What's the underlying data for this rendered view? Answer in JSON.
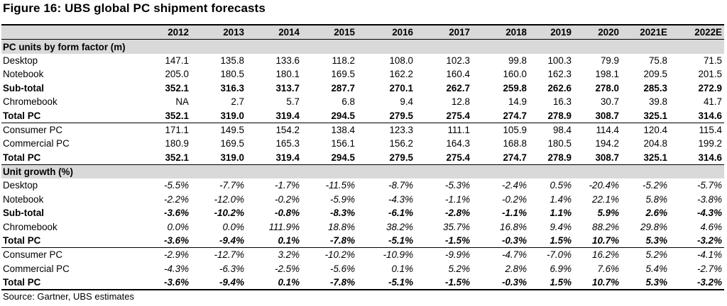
{
  "title": "Figure 16: UBS global PC shipment forecasts",
  "source": "Source:  Gartner, UBS estimates",
  "chart_data": {
    "type": "table",
    "columns": [
      "2012",
      "2013",
      "2014",
      "2015",
      "2016",
      "2017",
      "2018",
      "2019",
      "2020",
      "2021E",
      "2022E"
    ],
    "sections": [
      {
        "heading": "PC units by form factor (m)",
        "rows": [
          {
            "label": "Desktop",
            "bold": false,
            "values": [
              "147.1",
              "135.8",
              "133.6",
              "118.2",
              "108.0",
              "102.3",
              "99.8",
              "100.3",
              "79.9",
              "75.8",
              "71.5"
            ]
          },
          {
            "label": "Notebook",
            "bold": false,
            "values": [
              "205.0",
              "180.5",
              "180.1",
              "169.5",
              "162.2",
              "160.4",
              "160.0",
              "162.3",
              "198.1",
              "209.5",
              "201.5"
            ]
          },
          {
            "label": "Sub-total",
            "bold": true,
            "values": [
              "352.1",
              "316.3",
              "313.7",
              "287.7",
              "270.1",
              "262.7",
              "259.8",
              "262.6",
              "278.0",
              "285.3",
              "272.9"
            ]
          },
          {
            "label": "Chromebook",
            "bold": false,
            "values": [
              "NA",
              "2.7",
              "5.7",
              "6.8",
              "9.4",
              "12.8",
              "14.9",
              "16.3",
              "30.7",
              "39.8",
              "41.7"
            ]
          },
          {
            "label": "Total PC",
            "bold": true,
            "values": [
              "352.1",
              "319.0",
              "319.4",
              "294.5",
              "279.5",
              "275.4",
              "274.7",
              "278.9",
              "308.7",
              "325.1",
              "314.6"
            ]
          },
          {
            "label": "Consumer PC",
            "bold": false,
            "values": [
              "171.1",
              "149.5",
              "154.2",
              "138.4",
              "123.3",
              "111.1",
              "105.9",
              "98.4",
              "114.4",
              "120.4",
              "115.4"
            ]
          },
          {
            "label": "Commercial PC",
            "bold": false,
            "values": [
              "180.9",
              "169.5",
              "165.3",
              "156.1",
              "156.2",
              "164.3",
              "168.8",
              "180.5",
              "194.2",
              "204.8",
              "199.2"
            ]
          },
          {
            "label": "Total PC",
            "bold": true,
            "values": [
              "352.1",
              "319.0",
              "319.4",
              "294.5",
              "279.5",
              "275.4",
              "274.7",
              "278.9",
              "308.7",
              "325.1",
              "314.6"
            ]
          }
        ]
      },
      {
        "heading": "Unit growth (%)",
        "rows": [
          {
            "label": "Desktop",
            "bold": false,
            "values": [
              "-5.5%",
              "-7.7%",
              "-1.7%",
              "-11.5%",
              "-8.7%",
              "-5.3%",
              "-2.4%",
              "0.5%",
              "-20.4%",
              "-5.2%",
              "-5.7%"
            ]
          },
          {
            "label": "Notebook",
            "bold": false,
            "values": [
              "-2.2%",
              "-12.0%",
              "-0.2%",
              "-5.9%",
              "-4.3%",
              "-1.1%",
              "-0.2%",
              "1.4%",
              "22.1%",
              "5.8%",
              "-3.8%"
            ]
          },
          {
            "label": "Sub-total",
            "bold": true,
            "values": [
              "-3.6%",
              "-10.2%",
              "-0.8%",
              "-8.3%",
              "-6.1%",
              "-2.8%",
              "-1.1%",
              "1.1%",
              "5.9%",
              "2.6%",
              "-4.3%"
            ]
          },
          {
            "label": "Chromebook",
            "bold": false,
            "values": [
              "0.0%",
              "0.0%",
              "111.9%",
              "18.8%",
              "38.2%",
              "35.7%",
              "16.8%",
              "9.4%",
              "88.2%",
              "29.8%",
              "4.6%"
            ]
          },
          {
            "label": "Total PC",
            "bold": true,
            "values": [
              "-3.6%",
              "-9.4%",
              "0.1%",
              "-7.8%",
              "-5.1%",
              "-1.5%",
              "-0.3%",
              "1.5%",
              "10.7%",
              "5.3%",
              "-3.2%"
            ]
          },
          {
            "label": "Consumer PC",
            "bold": false,
            "values": [
              "-2.9%",
              "-12.7%",
              "3.2%",
              "-10.2%",
              "-10.9%",
              "-9.9%",
              "-4.7%",
              "-7.0%",
              "16.2%",
              "5.2%",
              "-4.1%"
            ]
          },
          {
            "label": "Commercial PC",
            "bold": false,
            "values": [
              "-4.3%",
              "-6.3%",
              "-2.5%",
              "-5.6%",
              "0.1%",
              "5.2%",
              "2.8%",
              "6.9%",
              "7.6%",
              "5.4%",
              "-2.7%"
            ]
          },
          {
            "label": "Total PC",
            "bold": true,
            "values": [
              "-3.6%",
              "-9.4%",
              "0.1%",
              "-7.8%",
              "-5.1%",
              "-1.5%",
              "-0.3%",
              "1.5%",
              "10.7%",
              "5.3%",
              "-3.2%"
            ]
          }
        ]
      }
    ]
  }
}
